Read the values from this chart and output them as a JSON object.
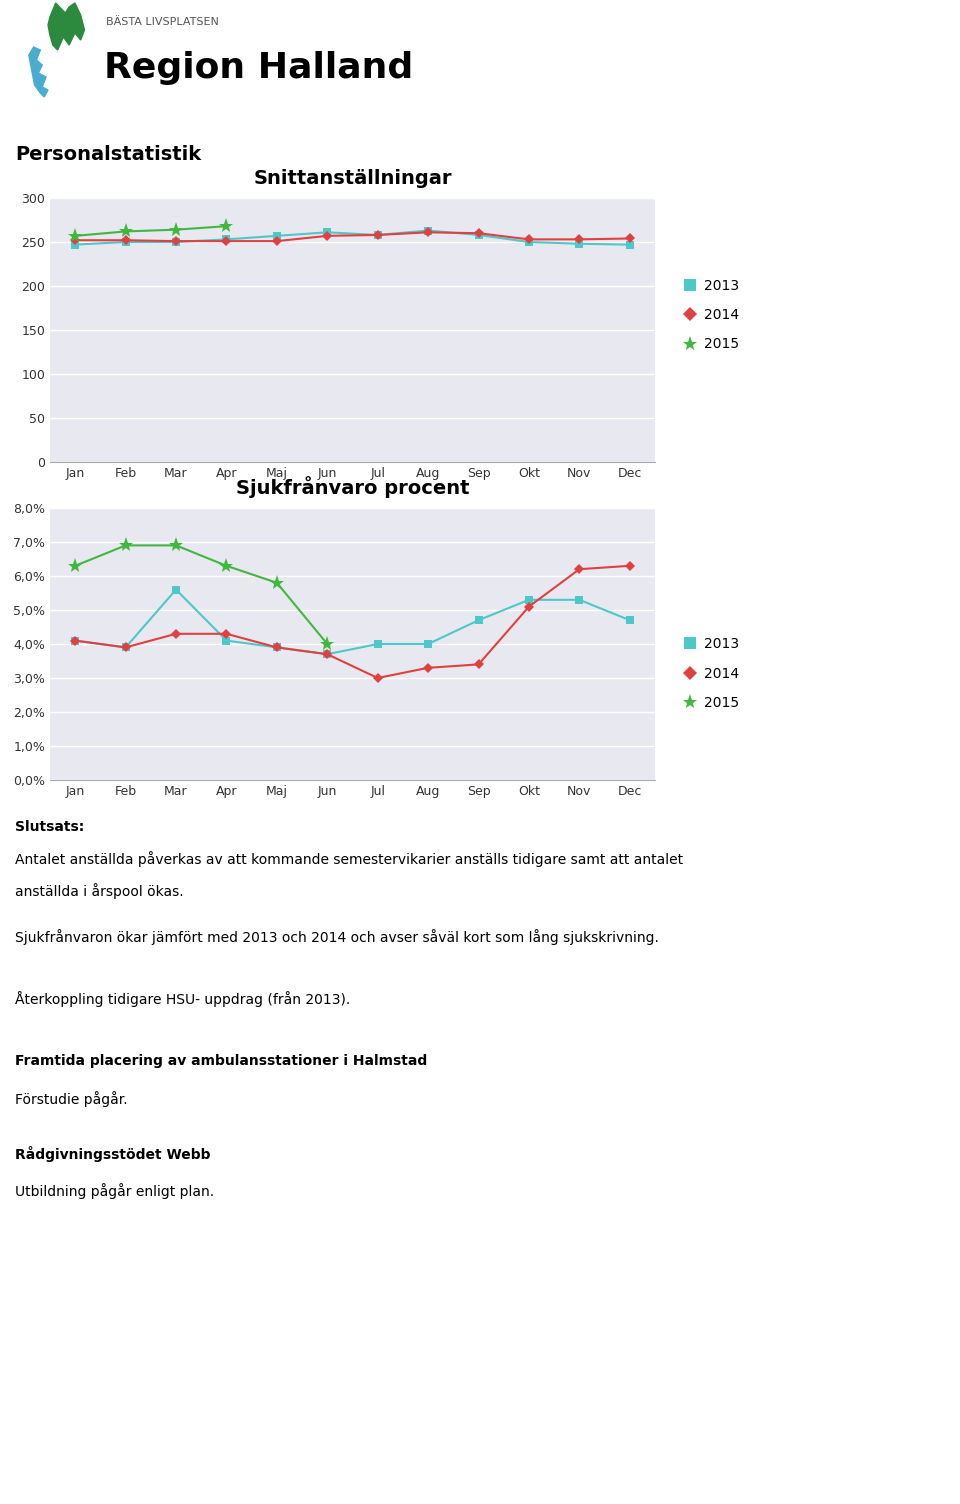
{
  "chart1_title": "Snittanställningar",
  "chart2_title": "Sjukfrånvaro procent",
  "months": [
    "Jan",
    "Feb",
    "Mar",
    "Apr",
    "Maj",
    "Jun",
    "Jul",
    "Aug",
    "Sep",
    "Okt",
    "Nov",
    "Dec"
  ],
  "snitt_2013": [
    247,
    250,
    250,
    253,
    257,
    261,
    258,
    263,
    258,
    250,
    248,
    247
  ],
  "snitt_2014": [
    252,
    252,
    251,
    251,
    251,
    257,
    258,
    261,
    260,
    253,
    253,
    254
  ],
  "snitt_2015": [
    257,
    262,
    264,
    268,
    null,
    null,
    null,
    null,
    null,
    null,
    null,
    null
  ],
  "sjuk_2013": [
    0.041,
    0.039,
    0.056,
    0.041,
    0.039,
    0.037,
    0.04,
    0.04,
    0.047,
    0.053,
    0.053,
    0.047
  ],
  "sjuk_2014": [
    0.041,
    0.039,
    0.043,
    0.043,
    0.039,
    0.037,
    0.03,
    0.033,
    0.034,
    0.051,
    0.062,
    0.063
  ],
  "sjuk_2015": [
    0.063,
    0.069,
    0.069,
    0.063,
    0.058,
    0.04,
    null,
    null,
    null,
    null,
    null,
    null
  ],
  "color_2013": "#4DC8C8",
  "color_2014": "#E04040",
  "color_2015": "#40B840",
  "bg_color": "#E8E8F0",
  "personalstatistik": "Personalstatistik",
  "legend_2013": "2013",
  "legend_2014": "2014",
  "legend_2015": "2015",
  "text_slutsats": "Slutsats:",
  "text_body1a": "Antalet anställda påverkas av att kommande semestervikarier anställs tidigare samt att antalet",
  "text_body1b": "anställda i årspool ökas.",
  "text_body2": "Sjukfrånvaron ökar jämfört med 2013 och 2014 och avser såväl kort som lång sjukskrivning.",
  "text_section": "Återkoppling tidigare HSU- uppdrag (från 2013).",
  "text_bold1": "Framtida placering av ambulansstationer i Halmstad",
  "text_plain1": "Förstudie pågår.",
  "text_bold2": "Rådgivningsstödet Webb",
  "text_plain2": "Utbildning pågår enligt plan.",
  "logo_small": "BÄSTA LIVSPLATSEN",
  "logo_large": "Region Halland"
}
